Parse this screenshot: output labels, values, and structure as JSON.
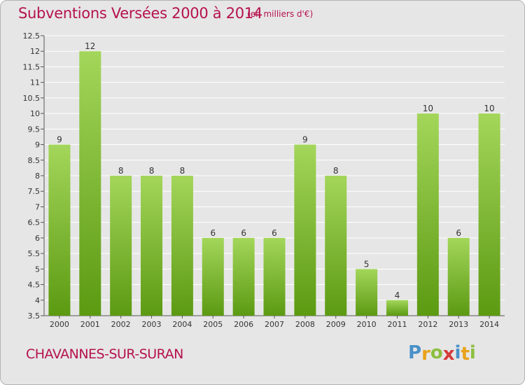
{
  "title": "Subventions Versées 2000 à 2014",
  "subtitle": "(en milliers d'€)",
  "commune": "CHAVANNES-SUR-SURAN",
  "logo": {
    "text": "Proxiti",
    "letters": [
      {
        "ch": "P",
        "color": "#4a90c8"
      },
      {
        "ch": "r",
        "color": "#e8a21b"
      },
      {
        "ch": "o",
        "color": "#8cbf3f"
      },
      {
        "ch": "x",
        "color": "#d63a3a"
      },
      {
        "ch": "i",
        "color": "#4a90c8"
      },
      {
        "ch": "t",
        "color": "#e8a21b"
      },
      {
        "ch": "i",
        "color": "#8cbf3f"
      }
    ]
  },
  "colors": {
    "accent": "#b5124e",
    "bar_top": "#a3d65a",
    "bar_bottom": "#5c9a12",
    "grid": "#ffffff",
    "plot_bg": "#e6e6e6"
  },
  "chart_data": {
    "type": "bar",
    "title": "Subventions Versées 2000 à 2014",
    "subtitle": "(en milliers d'€)",
    "categories": [
      "2000",
      "2001",
      "2002",
      "2003",
      "2004",
      "2005",
      "2006",
      "2007",
      "2008",
      "2009",
      "2010",
      "2011",
      "2012",
      "2013",
      "2014"
    ],
    "values": [
      9,
      12,
      8,
      8,
      8,
      6,
      6,
      6,
      9,
      8,
      5,
      4,
      10,
      6,
      10
    ],
    "ylim": [
      3.5,
      12.5
    ],
    "yticks": [
      "3.5",
      "4",
      "4.5",
      "5",
      "5.5",
      "6",
      "6.5",
      "7",
      "7.5",
      "8",
      "8.5",
      "9",
      "9.5",
      "10",
      "10.5",
      "11",
      "11.5",
      "12",
      "12.5"
    ],
    "grid": true,
    "legend": "none"
  }
}
